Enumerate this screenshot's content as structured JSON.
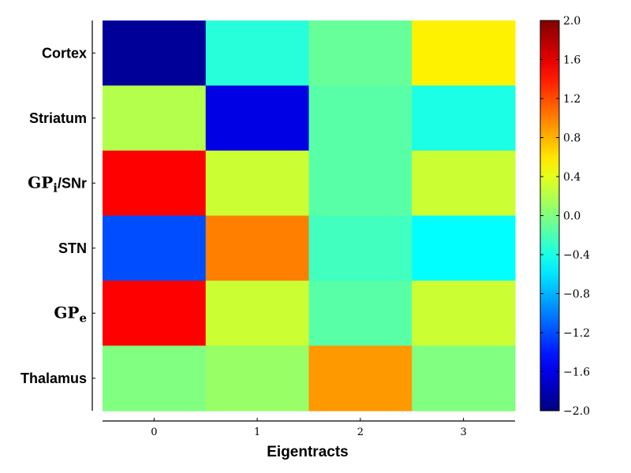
{
  "chart_data": {
    "type": "heatmap",
    "xlabel": "Eigentracts",
    "ylabel": "",
    "x_categories": [
      "0",
      "1",
      "2",
      "3"
    ],
    "y_categories": [
      {
        "base": "Cortex",
        "sub": "",
        "suffix": ""
      },
      {
        "base": "Striatum",
        "sub": "",
        "suffix": ""
      },
      {
        "base": "GP",
        "sub": "i",
        "suffix": "/SNr"
      },
      {
        "base": "STN",
        "sub": "",
        "suffix": ""
      },
      {
        "base": "GP",
        "sub": "e",
        "suffix": ""
      },
      {
        "base": "Thalamus",
        "sub": "",
        "suffix": ""
      }
    ],
    "values": [
      [
        -1.9,
        -0.35,
        -0.1,
        0.55
      ],
      [
        0.2,
        -1.6,
        -0.15,
        -0.4
      ],
      [
        1.5,
        0.3,
        -0.15,
        0.3
      ],
      [
        -1.2,
        1.0,
        -0.25,
        -0.5
      ],
      [
        1.5,
        0.3,
        -0.15,
        0.3
      ],
      [
        0.0,
        0.1,
        0.9,
        0.0
      ]
    ],
    "colorbar": {
      "min": -2.0,
      "max": 2.0,
      "ticks": [
        "−2.0",
        "−1.6",
        "−1.2",
        "−0.8",
        "−0.4",
        "0.0",
        "0.4",
        "0.8",
        "1.2",
        "1.6",
        "2.0"
      ]
    },
    "colormap": "jet",
    "grid": false
  }
}
